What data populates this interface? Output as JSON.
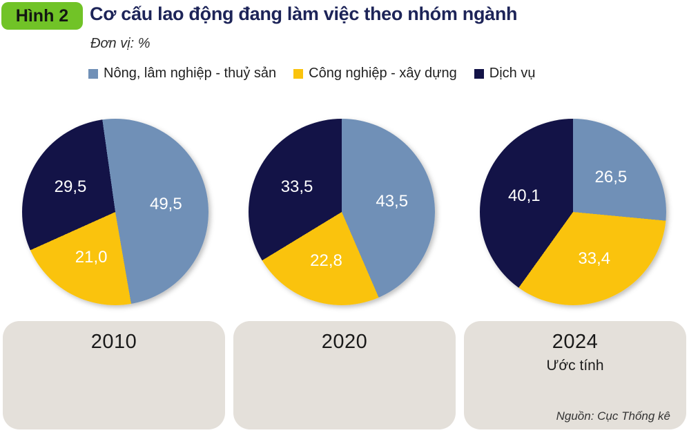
{
  "header": {
    "badge": "Hình 2",
    "title": "Cơ cấu lao động đang làm việc theo nhóm ngành",
    "unit": "Đơn vị: %"
  },
  "legend": {
    "items": [
      {
        "label": "Nông, lâm nghiệp - thuỷ sản",
        "color": "#7090b7"
      },
      {
        "label": "Công nghiệp - xây dựng",
        "color": "#fac30d"
      },
      {
        "label": "Dịch vụ",
        "color": "#131347"
      }
    ]
  },
  "chart_data": {
    "type": "pie",
    "title": "Cơ cấu lao động đang làm việc theo nhóm ngành",
    "unit": "%",
    "legend_position": "top",
    "categories": [
      "Nông, lâm nghiệp - thuỷ sản",
      "Công nghiệp - xây dựng",
      "Dịch vụ"
    ],
    "colors": [
      "#7090b7",
      "#fac30d",
      "#131347"
    ],
    "pies": [
      {
        "year": "2010",
        "note": "",
        "values": [
          49.5,
          21.0,
          29.5
        ],
        "display_labels": [
          "49,5",
          "21,0",
          "29,5"
        ],
        "start_angle_deg": -8
      },
      {
        "year": "2020",
        "note": "",
        "values": [
          43.5,
          22.8,
          33.5
        ],
        "display_labels": [
          "43,5",
          "22,8",
          "33,5"
        ],
        "start_angle_deg": 0
      },
      {
        "year": "2024",
        "note": "Ước tính",
        "values": [
          26.5,
          33.4,
          40.1
        ],
        "display_labels": [
          "26,5",
          "33,4",
          "40,1"
        ],
        "start_angle_deg": 0
      }
    ]
  },
  "footer": {
    "source": "Nguồn: Cục Thống kê"
  }
}
